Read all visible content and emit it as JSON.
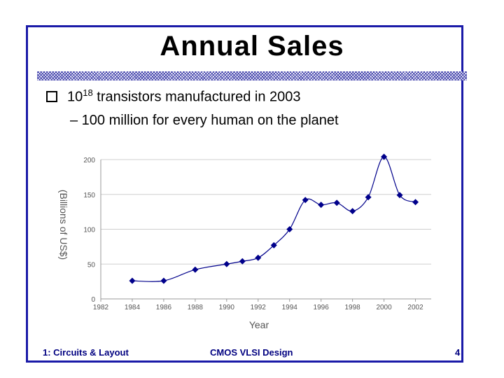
{
  "slide": {
    "title": "Annual Sales",
    "bullet": {
      "base": "10",
      "exponent": "18",
      "rest": " transistors manufactured in 2003"
    },
    "sub_bullet": "– 100 million for every human on the planet"
  },
  "footer": {
    "left": "1: Circuits & Layout",
    "center": "CMOS VLSI Design",
    "right": "4"
  },
  "colors": {
    "frame": "#1a1aa8",
    "series": "#00008b",
    "footer": "#000080"
  },
  "chart_data": {
    "type": "line",
    "title": "",
    "xlabel": "Year",
    "ylabel": "(Billions of US$)",
    "xlim": [
      1982,
      2003
    ],
    "ylim": [
      0,
      200
    ],
    "x_ticks": [
      1982,
      1984,
      1986,
      1988,
      1990,
      1992,
      1994,
      1996,
      1998,
      2000,
      2002
    ],
    "y_ticks": [
      0,
      50,
      100,
      150,
      200
    ],
    "grid": "horizontal",
    "series": [
      {
        "x": [
          1984,
          1986,
          1988,
          1990,
          1991,
          1992,
          1993,
          1994,
          1995,
          1996,
          1997,
          1998,
          1999,
          2000,
          2001,
          2002
        ],
        "y": [
          26,
          26,
          42,
          50,
          54,
          59,
          77,
          100,
          142,
          135,
          138,
          126,
          146,
          204,
          149,
          139
        ]
      }
    ]
  }
}
